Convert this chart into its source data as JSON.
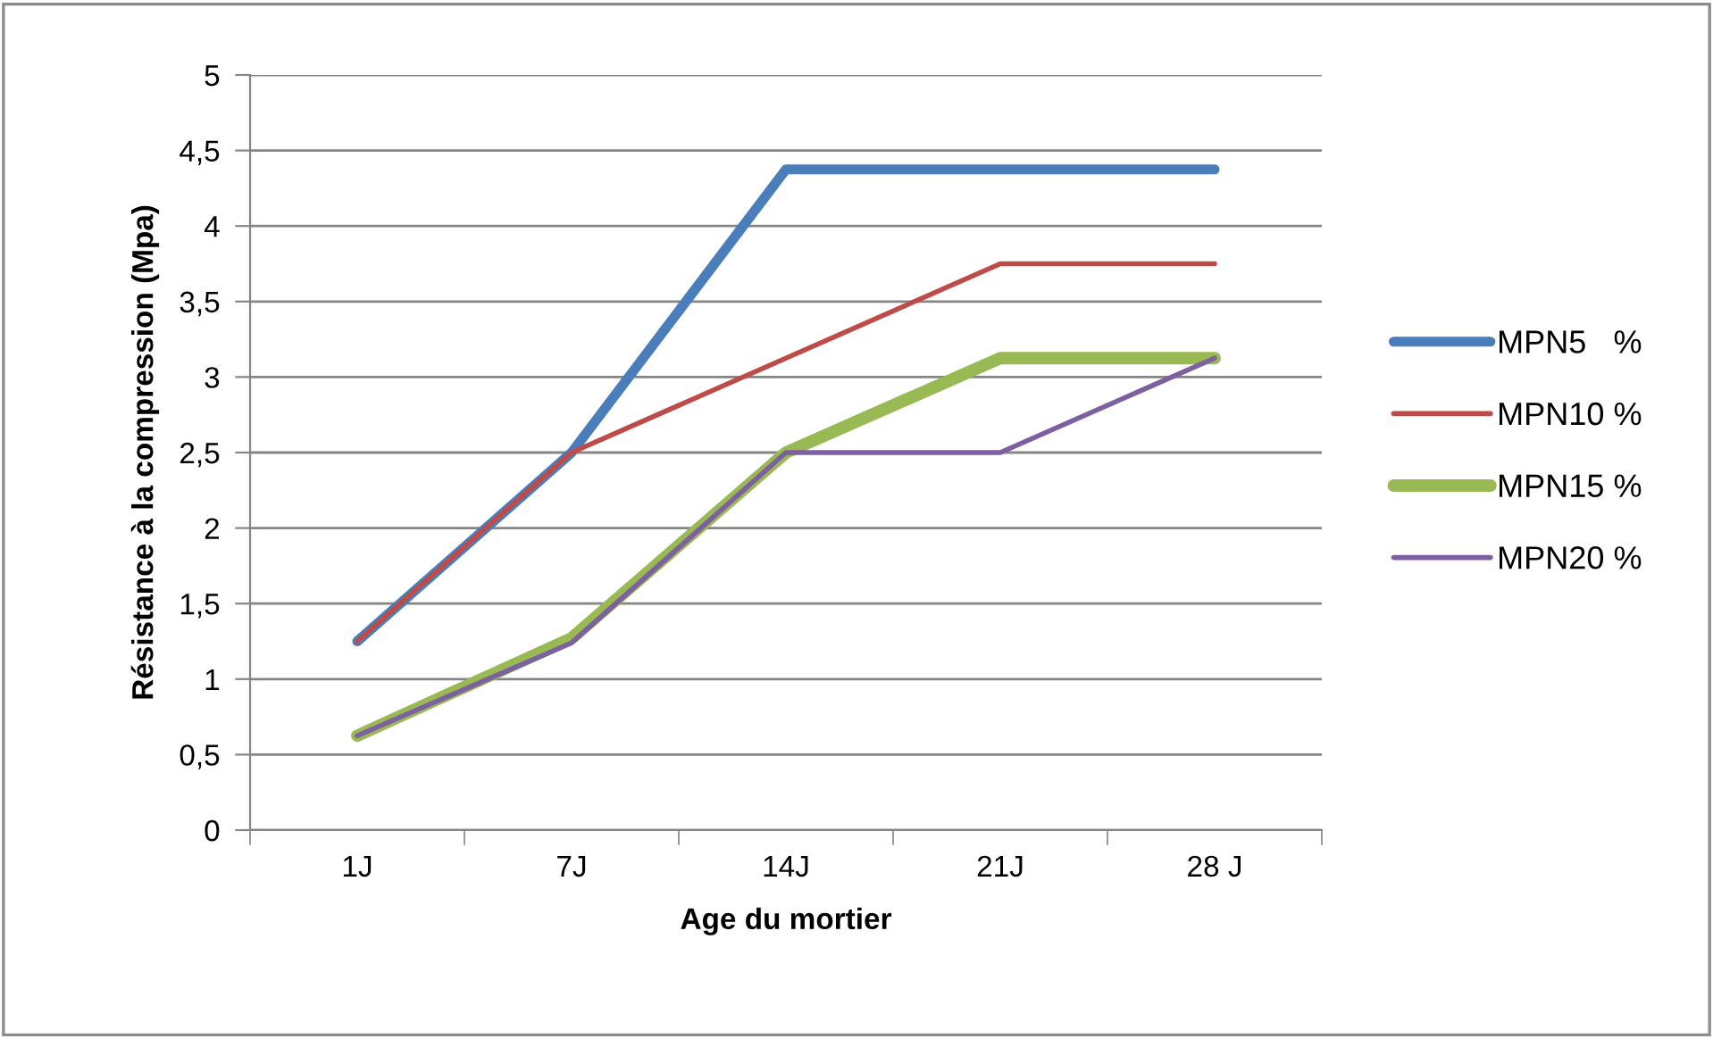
{
  "chart_data": {
    "type": "line",
    "xlabel": "Age du mortier",
    "ylabel": "Résistance à la compression (Mpa)",
    "categories": [
      "1J",
      "7J",
      "14J",
      "21J",
      "28 J"
    ],
    "series": [
      {
        "name": "MPN5   %",
        "color": "#4a7ebb",
        "values": [
          1.25,
          2.5,
          4.375,
          4.375,
          4.375
        ]
      },
      {
        "name": "MPN10 %",
        "color": "#be4b48",
        "values": [
          1.25,
          2.5,
          3.125,
          3.75,
          3.75
        ]
      },
      {
        "name": "MPN15 %",
        "color": "#98b954",
        "values": [
          0.625,
          1.27,
          2.5,
          3.125,
          3.125
        ]
      },
      {
        "name": "MPN20 %",
        "color": "#7d60a0",
        "values": [
          0.625,
          1.24,
          2.5,
          2.5,
          3.125
        ]
      }
    ],
    "ylim": [
      0,
      5
    ],
    "yticks": [
      0,
      {
        "value": 0.5,
        "label": "0,5"
      },
      1,
      {
        "value": 1.5,
        "label": "1,5"
      },
      2,
      {
        "value": 2.5,
        "label": "2,5"
      },
      3,
      {
        "value": 3.5,
        "label": "3,5"
      },
      4,
      {
        "value": 4.5,
        "label": "4,5"
      },
      5
    ],
    "grid": "y",
    "legend": "right",
    "marker": "none",
    "line_style": "solid"
  }
}
